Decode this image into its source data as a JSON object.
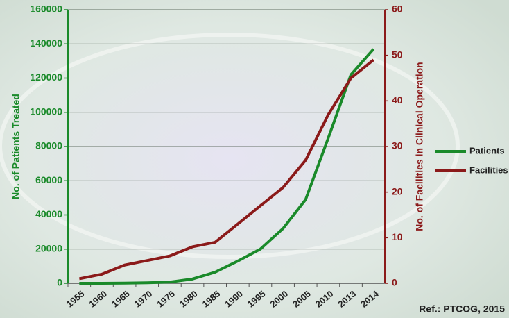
{
  "chart_data": {
    "type": "line",
    "categories": [
      "1955",
      "1960",
      "1965",
      "1970",
      "1975",
      "1980",
      "1985",
      "1990",
      "1995",
      "2000",
      "2005",
      "2010",
      "2013",
      "2014"
    ],
    "series": [
      {
        "name": "Patients",
        "color": "#1a8a2a",
        "values": [
          0,
          0,
          100,
          300,
          700,
          2500,
          6500,
          13000,
          20000,
          32000,
          49000,
          85000,
          122000,
          137000
        ]
      },
      {
        "name": "Facilities",
        "color": "#8b1a1a",
        "axis": "y2",
        "values": [
          1,
          2,
          4,
          5,
          6,
          8,
          9,
          13,
          17,
          21,
          27,
          37,
          45,
          49
        ]
      }
    ],
    "ylabel": "No. of Patients Treated",
    "y2label": "No. of Facilities in Clinical Operation",
    "ylim": [
      0,
      160000
    ],
    "yticks": [
      0,
      20000,
      40000,
      60000,
      80000,
      100000,
      120000,
      140000,
      160000
    ],
    "y2lim": [
      0,
      60
    ],
    "y2ticks": [
      0,
      10,
      20,
      30,
      40,
      50,
      60
    ],
    "grid": true,
    "legend": "right",
    "annotation": "Ref.: PTCOG, 2015"
  }
}
